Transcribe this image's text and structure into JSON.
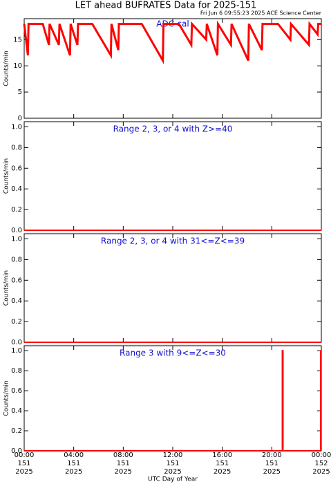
{
  "title": "LET ahead BUFRATES Data for 2025-151",
  "subtitle": "Fri Jun  6 09:55:23 2025 ACE Science Center",
  "chart_data": [
    {
      "type": "line",
      "label": "ADC-cal",
      "ylabel": "Counts/min",
      "color": "#ff0000",
      "xlim": [
        0,
        24
      ],
      "ylim": [
        0,
        19
      ],
      "yticks": [
        0,
        5,
        10,
        15
      ],
      "x": [
        0,
        0.3,
        0.35,
        1.5,
        2.0,
        2.05,
        2.8,
        2.85,
        3.7,
        3.75,
        4.3,
        4.35,
        5.5,
        7.0,
        7.05,
        7.6,
        7.65,
        9.5,
        11.2,
        11.25,
        12.5,
        13.5,
        13.55,
        14.7,
        14.75,
        15.6,
        15.65,
        16.7,
        16.75,
        18.1,
        18.15,
        19.2,
        19.25,
        20.5,
        21.5,
        21.55,
        23.0,
        23.05,
        23.7,
        23.75,
        24
      ],
      "values": [
        18,
        12,
        18,
        18,
        14,
        18,
        14,
        18,
        12,
        18,
        14,
        18,
        18,
        12,
        18,
        13,
        18,
        18,
        11,
        18,
        18,
        14,
        18,
        15,
        18,
        12,
        18,
        14,
        18,
        11,
        18,
        13,
        18,
        18,
        15,
        18,
        14,
        18,
        16,
        18,
        18
      ]
    },
    {
      "type": "line",
      "label": "Range 2, 3, or 4 with Z>=40",
      "ylabel": "Counts/min",
      "color": "#ff0000",
      "xlim": [
        0,
        24
      ],
      "ylim": [
        0,
        1.05
      ],
      "yticks": [
        {
          "value": 0,
          "label": "0.0"
        },
        {
          "value": 0.2,
          "label": "0.2"
        },
        {
          "value": 0.4,
          "label": "0.4"
        },
        {
          "value": 0.6,
          "label": "0.6"
        },
        {
          "value": 0.8,
          "label": "0.8"
        },
        {
          "value": 1,
          "label": "1.0"
        }
      ],
      "x": [
        0,
        24
      ],
      "values": [
        0,
        0
      ]
    },
    {
      "type": "line",
      "label": "Range 2, 3, or 4 with 31<=Z<=39",
      "ylabel": "Counts/min",
      "color": "#ff0000",
      "xlim": [
        0,
        24
      ],
      "ylim": [
        0,
        1.05
      ],
      "yticks": [
        {
          "value": 0,
          "label": "0.0"
        },
        {
          "value": 0.2,
          "label": "0.2"
        },
        {
          "value": 0.4,
          "label": "0.4"
        },
        {
          "value": 0.6,
          "label": "0.6"
        },
        {
          "value": 0.8,
          "label": "0.8"
        },
        {
          "value": 1,
          "label": "1.0"
        }
      ],
      "x": [
        0,
        24
      ],
      "values": [
        0,
        0
      ]
    },
    {
      "type": "line",
      "label": "Range 3 with 9<=Z<=30",
      "ylabel": "Counts/min",
      "xlabel": "UTC Day of Year",
      "color": "#ff0000",
      "xlim": [
        0,
        24
      ],
      "ylim": [
        0,
        1.05
      ],
      "yticks": [
        {
          "value": 0,
          "label": "0.0"
        },
        {
          "value": 0.2,
          "label": "0.2"
        },
        {
          "value": 0.4,
          "label": "0.4"
        },
        {
          "value": 0.6,
          "label": "0.6"
        },
        {
          "value": 0.8,
          "label": "0.8"
        },
        {
          "value": 1,
          "label": "1.0"
        }
      ],
      "xticks": [
        {
          "value": 0,
          "label": [
            "00:00",
            "151",
            "2025"
          ]
        },
        {
          "value": 4,
          "label": [
            "04:00",
            "151",
            "2025"
          ]
        },
        {
          "value": 8,
          "label": [
            "08:00",
            "151",
            "2025"
          ]
        },
        {
          "value": 12,
          "label": [
            "12:00",
            "151",
            "2025"
          ]
        },
        {
          "value": 16,
          "label": [
            "16:00",
            "151",
            "2025"
          ]
        },
        {
          "value": 20,
          "label": [
            "20:00",
            "151",
            "2025"
          ]
        },
        {
          "value": 24,
          "label": [
            "00:00",
            "152",
            "2025"
          ]
        }
      ],
      "x": [
        0,
        20.85,
        20.85,
        20.9,
        20.9,
        23.95,
        23.95,
        24
      ],
      "values": [
        0,
        0,
        1,
        1,
        0,
        0,
        1,
        1
      ]
    }
  ]
}
